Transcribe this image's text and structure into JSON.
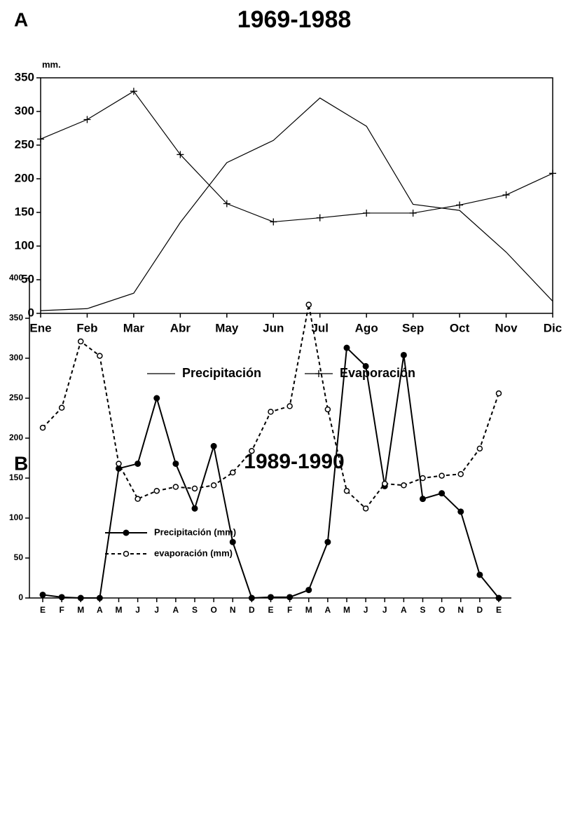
{
  "chart_data": [
    {
      "type": "line",
      "label": "A",
      "title": "1969-1988",
      "ylabel": "mm.",
      "categories": [
        "Ene",
        "Feb",
        "Mar",
        "Abr",
        "May",
        "Jun",
        "Jul",
        "Ago",
        "Sep",
        "Oct",
        "Nov",
        "Dic"
      ],
      "series": [
        {
          "name": "Precipitación",
          "color": "#000000",
          "marker": "none",
          "dashed": false,
          "values": [
            4,
            7,
            30,
            135,
            224,
            257,
            320,
            278,
            162,
            153,
            91,
            18
          ]
        },
        {
          "name": "Evaporación",
          "color": "#000000",
          "marker": "plus",
          "dashed": false,
          "values": [
            259,
            288,
            330,
            236,
            163,
            136,
            142,
            149,
            149,
            161,
            176,
            208
          ]
        }
      ],
      "ylim": [
        0,
        350
      ],
      "yticks": [
        0,
        50,
        100,
        150,
        200,
        250,
        300,
        350
      ],
      "frame": true,
      "legend": "bottom"
    },
    {
      "type": "line",
      "label": "B",
      "title": "1989-1990",
      "categories": [
        "E",
        "F",
        "M",
        "A",
        "M",
        "J",
        "J",
        "A",
        "S",
        "O",
        "N",
        "D",
        "E",
        "F",
        "M",
        "A",
        "M",
        "J",
        "J",
        "A",
        "S",
        "O",
        "N",
        "D",
        "E"
      ],
      "series": [
        {
          "name": "Precipitación (mm)",
          "color": "#000000",
          "marker": "filled-circle",
          "dashed": false,
          "values": [
            4,
            1,
            0,
            0,
            162,
            168,
            250,
            168,
            112,
            190,
            70,
            0,
            1,
            1,
            10,
            70,
            313,
            290,
            140,
            304,
            124,
            131,
            108,
            29,
            0
          ]
        },
        {
          "name": "evaporación (mm)",
          "color": "#000000",
          "marker": "open-circle",
          "dashed": true,
          "values": [
            213,
            238,
            321,
            303,
            168,
            124,
            134,
            139,
            137,
            141,
            157,
            184,
            233,
            240,
            367,
            236,
            134,
            112,
            143,
            141,
            150,
            153,
            155,
            187,
            256
          ]
        }
      ],
      "ylim": [
        0,
        400
      ],
      "yticks": [
        0,
        50,
        100,
        150,
        200,
        250,
        300,
        350,
        400
      ],
      "frame": false,
      "legend": "top-left"
    }
  ]
}
